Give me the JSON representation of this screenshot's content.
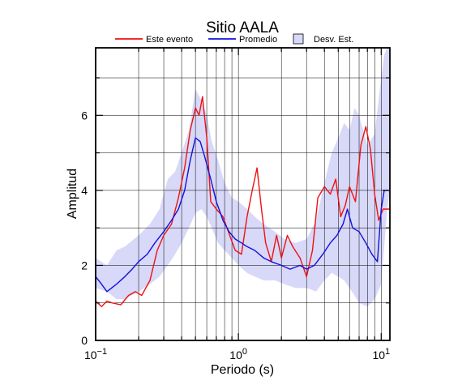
{
  "chart_data": {
    "type": "line",
    "title": "Sitio AALA",
    "xlabel": "Periodo (s)",
    "ylabel": "Amplitud",
    "xscale": "log",
    "xlim": [
      0.1,
      11.5
    ],
    "ylim": [
      0,
      7.8
    ],
    "x_ticks": [
      {
        "value": 0.1,
        "base": "10",
        "exp": "−1"
      },
      {
        "value": 1,
        "base": "10",
        "exp": "0"
      },
      {
        "value": 10,
        "base": "10",
        "exp": "1"
      }
    ],
    "y_ticks": [
      0,
      2,
      4,
      6
    ],
    "grid": true,
    "legend": {
      "position": "top",
      "items": [
        {
          "label": "Este evento",
          "color": "#ee1111",
          "kind": "line"
        },
        {
          "label": "Promedio",
          "color": "#1111dd",
          "kind": "line"
        },
        {
          "label": "Desv. Est.",
          "color": "#d8d8f8",
          "kind": "box"
        }
      ]
    },
    "series": [
      {
        "name": "Este evento",
        "color": "#ee1111",
        "x": [
          0.1,
          0.11,
          0.12,
          0.13,
          0.15,
          0.17,
          0.19,
          0.21,
          0.24,
          0.27,
          0.3,
          0.34,
          0.38,
          0.42,
          0.46,
          0.5,
          0.53,
          0.56,
          0.6,
          0.64,
          0.7,
          0.78,
          0.85,
          0.95,
          1.05,
          1.15,
          1.25,
          1.35,
          1.45,
          1.55,
          1.7,
          1.85,
          2.0,
          2.2,
          2.4,
          2.7,
          3.0,
          3.3,
          3.6,
          4.0,
          4.4,
          4.8,
          5.2,
          5.6,
          6.0,
          6.6,
          7.2,
          7.8,
          8.4,
          9.0,
          9.6,
          10.3,
          11.0,
          11.5
        ],
        "y": [
          1.05,
          0.9,
          1.05,
          1.0,
          0.95,
          1.2,
          1.3,
          1.2,
          1.6,
          2.4,
          2.8,
          3.1,
          3.8,
          4.6,
          5.6,
          6.2,
          6.0,
          6.5,
          5.4,
          3.7,
          3.5,
          3.3,
          2.9,
          2.4,
          2.3,
          3.3,
          4.0,
          4.6,
          3.5,
          2.6,
          2.1,
          2.8,
          2.2,
          2.8,
          2.5,
          2.2,
          1.7,
          2.4,
          3.8,
          4.1,
          3.9,
          4.3,
          3.3,
          3.6,
          4.1,
          3.7,
          5.2,
          5.7,
          5.1,
          3.9,
          3.2,
          3.5,
          3.5,
          3.5
        ]
      },
      {
        "name": "Promedio",
        "color": "#1111dd",
        "x": [
          0.1,
          0.11,
          0.12,
          0.14,
          0.16,
          0.18,
          0.2,
          0.23,
          0.26,
          0.3,
          0.34,
          0.38,
          0.42,
          0.46,
          0.5,
          0.54,
          0.58,
          0.64,
          0.7,
          0.78,
          0.86,
          0.95,
          1.05,
          1.15,
          1.3,
          1.5,
          1.7,
          2.0,
          2.3,
          2.7,
          3.0,
          3.4,
          3.9,
          4.4,
          4.9,
          5.4,
          5.8,
          6.3,
          7.0,
          7.8,
          8.6,
          9.4,
          10.0,
          10.5,
          11.0,
          11.5
        ],
        "y": [
          1.7,
          1.5,
          1.3,
          1.5,
          1.7,
          1.9,
          2.1,
          2.3,
          2.6,
          2.9,
          3.2,
          3.5,
          4.0,
          4.8,
          5.4,
          5.3,
          4.9,
          4.3,
          3.7,
          3.2,
          2.9,
          2.7,
          2.6,
          2.5,
          2.4,
          2.2,
          2.1,
          2.0,
          1.9,
          2.0,
          1.9,
          2.0,
          2.3,
          2.6,
          2.8,
          3.1,
          3.5,
          3.0,
          2.9,
          2.6,
          2.3,
          2.1,
          3.5,
          4.0,
          4.0,
          4.0
        ]
      }
    ],
    "band": {
      "name": "Desv. Est.",
      "color": "#d8d8f8",
      "x": [
        0.1,
        0.12,
        0.14,
        0.16,
        0.2,
        0.24,
        0.28,
        0.32,
        0.36,
        0.4,
        0.45,
        0.5,
        0.55,
        0.6,
        0.65,
        0.72,
        0.8,
        0.9,
        1.0,
        1.15,
        1.3,
        1.5,
        1.8,
        2.1,
        2.5,
        3.0,
        3.5,
        4.0,
        4.5,
        5.0,
        5.5,
        6.0,
        6.5,
        7.0,
        8.0,
        9.0,
        10.0,
        10.5,
        11.0,
        11.5
      ],
      "upper": [
        2.2,
        2.0,
        2.4,
        2.5,
        2.8,
        3.1,
        3.5,
        4.3,
        4.5,
        5.0,
        5.6,
        6.7,
        6.4,
        6.0,
        5.3,
        4.8,
        4.2,
        3.8,
        3.7,
        3.5,
        3.3,
        3.1,
        2.9,
        2.7,
        2.6,
        2.7,
        3.2,
        4.2,
        5.0,
        5.4,
        5.8,
        5.6,
        6.2,
        6.0,
        5.2,
        5.5,
        7.0,
        7.6,
        7.8,
        7.8
      ],
      "lower": [
        1.4,
        1.3,
        1.1,
        1.1,
        1.3,
        1.5,
        1.7,
        2.0,
        2.3,
        2.6,
        3.0,
        3.4,
        3.5,
        3.3,
        3.0,
        2.6,
        2.4,
        2.2,
        2.0,
        1.8,
        1.7,
        1.6,
        1.6,
        1.5,
        1.4,
        1.4,
        1.3,
        1.6,
        1.8,
        1.7,
        1.6,
        1.4,
        1.2,
        1.0,
        0.9,
        1.1,
        1.5,
        2.5,
        3.5,
        4.0
      ]
    }
  }
}
